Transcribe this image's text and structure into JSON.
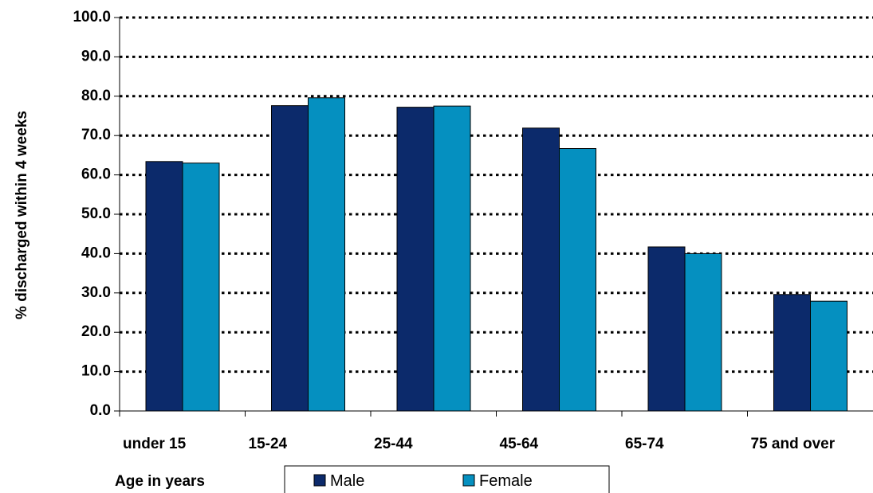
{
  "chart_data": {
    "type": "bar",
    "categories": [
      "under 15",
      "15-24",
      "25-44",
      "45-64",
      "65-74",
      "75 and over"
    ],
    "series": [
      {
        "name": "Male",
        "color": "#0c2a6b",
        "values": [
          63.4,
          77.6,
          77.2,
          71.9,
          41.7,
          29.6
        ]
      },
      {
        "name": "Female",
        "color": "#0590c0",
        "values": [
          63.0,
          79.6,
          77.5,
          66.7,
          40.0,
          27.9
        ]
      }
    ],
    "xlabel": "Age in years",
    "ylabel": "% discharged within 4 weeks",
    "ylim": [
      0,
      100
    ],
    "yticks": [
      "0.0",
      "10.0",
      "20.0",
      "30.0",
      "40.0",
      "50.0",
      "60.0",
      "70.0",
      "80.0",
      "90.0",
      "100.0"
    ],
    "grid": true,
    "legend": "bottom"
  }
}
